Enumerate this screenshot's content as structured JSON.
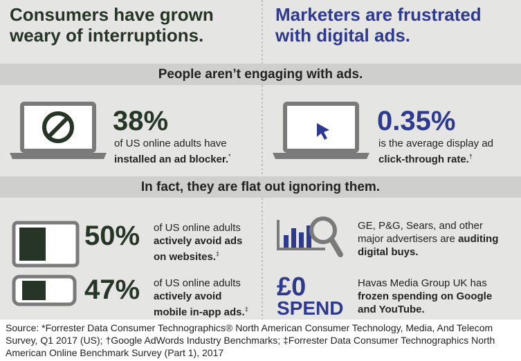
{
  "left_header": "Consumers have grown weary of interruptions.",
  "right_header": "Marketers are frustrated with digital ads.",
  "band1": "People aren’t engaging with ads.",
  "band2": "In fact, they are flat out ignoring them.",
  "stats": [
    {
      "figure": "38%",
      "plain": "of US online adults have",
      "bold": "installed an ad blocker.",
      "note": "*"
    },
    {
      "figure": "0.35%",
      "plain": "is the average display ad",
      "bold": "click-through rate.",
      "note": "†"
    },
    {
      "figure": "50%",
      "plain": "of US online adults",
      "bold": "actively avoid ads on websites.",
      "note": "‡"
    },
    {
      "figure": "47%",
      "plain": "of US online adults",
      "bold": "actively avoid mobile in-app ads.",
      "note": "‡"
    }
  ],
  "advertisers": {
    "plain": "GE, P&G, Sears, and other major advertisers are",
    "bold": "auditing digital buys."
  },
  "spend": {
    "figure": "£0",
    "word": "SPEND",
    "plain": "Havas Media Group UK has",
    "bold": "frozen spending on Google and YouTube."
  },
  "source": "Source: *Forrester Data Consumer Technographics® North American Consumer Technology, Media, And Telecom Survey, Q1 2017 (US); †Google AdWords Industry Benchmarks; ‡Forrester Data Consumer Technographics North American Online Benchmark Survey (Part 1), 2017"
}
